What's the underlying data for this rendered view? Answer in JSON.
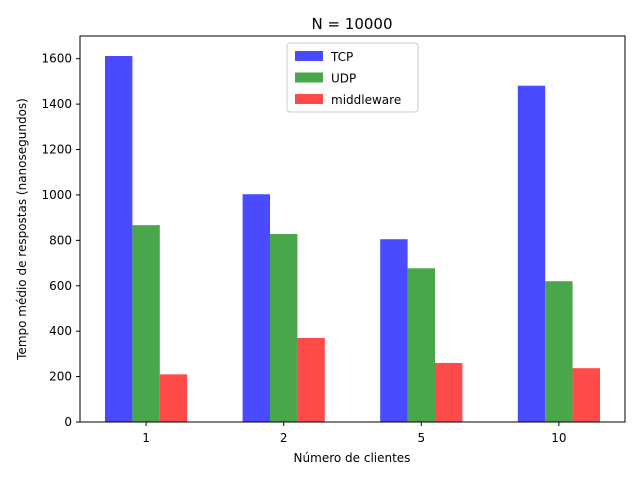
{
  "chart_data": {
    "type": "bar",
    "title": "N = 10000",
    "xlabel": "Número de clientes",
    "ylabel": "Tempo médio de respostas (nanosegundos)",
    "categories": [
      "1",
      "2",
      "5",
      "10"
    ],
    "ylim": [
      0,
      1700
    ],
    "yticks": [
      0,
      200,
      400,
      600,
      800,
      1000,
      1200,
      1400,
      1600
    ],
    "grid": false,
    "legend_position": "upper center",
    "series": [
      {
        "name": "TCP",
        "color": "#4a4aff",
        "values": [
          1612,
          1003,
          805,
          1481
        ]
      },
      {
        "name": "UDP",
        "color": "#4aa64a",
        "values": [
          867,
          828,
          677,
          620
        ]
      },
      {
        "name": "middleware",
        "color": "#ff4a4a",
        "values": [
          210,
          370,
          260,
          237
        ]
      }
    ]
  }
}
